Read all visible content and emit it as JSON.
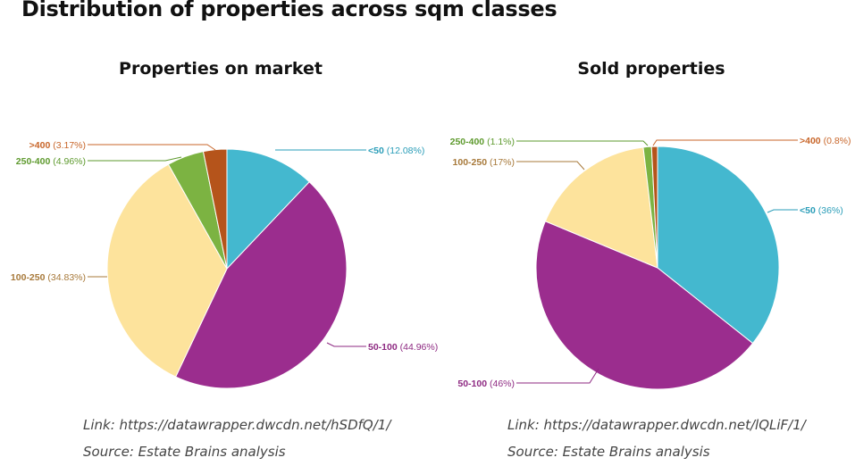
{
  "page_title": "Distribution of properties across sqm classes",
  "chart_data": [
    {
      "type": "pie",
      "title": "Properties on market",
      "slices": [
        {
          "category": "<50",
          "pct_label": "(12.08%)",
          "value": 12.08,
          "color": "#44B8CF"
        },
        {
          "category": "50-100",
          "pct_label": "(44.96%)",
          "value": 44.96,
          "color": "#9B2D8E"
        },
        {
          "category": "100-250",
          "pct_label": "(34.83%)",
          "value": 34.83,
          "color": "#FDE39C"
        },
        {
          "category": "250-400",
          "pct_label": "(4.96%)",
          "value": 4.96,
          "color": "#7CB342"
        },
        {
          "category": ">400",
          "pct_label": "(3.17%)",
          "value": 3.17,
          "color": "#B5541B"
        }
      ],
      "link": "Link: https://datawrapper.dwcdn.net/hSDfQ/1/",
      "source": "Source: Estate Brains analysis"
    },
    {
      "type": "pie",
      "title": "Sold properties",
      "slices": [
        {
          "category": "<50",
          "pct_label": "(36%)",
          "value": 36,
          "color": "#44B8CF"
        },
        {
          "category": "50-100",
          "pct_label": "(46%)",
          "value": 46,
          "color": "#9B2D8E"
        },
        {
          "category": "100-250",
          "pct_label": "(17%)",
          "value": 17,
          "color": "#FDE39C"
        },
        {
          "category": "250-400",
          "pct_label": "(1.1%)",
          "value": 1.1,
          "color": "#7CB342"
        },
        {
          "category": ">400",
          "pct_label": "(0.8%)",
          "value": 0.8,
          "color": "#B5541B"
        }
      ],
      "link": "Link: https://datawrapper.dwcdn.net/lQLiF/1/",
      "source": "Source: Estate Brains analysis"
    }
  ],
  "label_colors": {
    "<50": "#2A9DB8",
    "50-100": "#8E2A82",
    "100-250": "#A7793A",
    "250-400": "#5E9A2E",
    ">400": "#C8662A"
  }
}
